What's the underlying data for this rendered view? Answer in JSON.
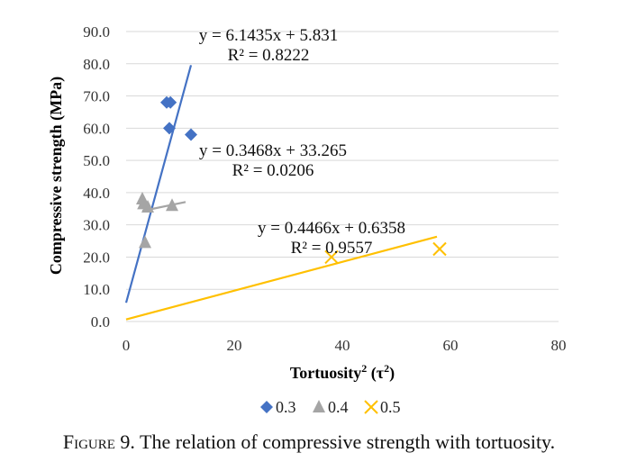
{
  "chart_data": {
    "type": "scatter",
    "xlabel": "Tortuosity",
    "ylabel": "Compressive strength (MPa)",
    "xlim": [
      0,
      80
    ],
    "ylim": [
      0,
      90
    ],
    "x_ticks": [
      "0",
      "20",
      "40",
      "60",
      "80"
    ],
    "y_ticks": [
      "0.0",
      "10.0",
      "20.0",
      "30.0",
      "40.0",
      "50.0",
      "60.0",
      "70.0",
      "80.0",
      "90.0"
    ],
    "grid": "horizontal",
    "legend_position": "bottom",
    "series": [
      {
        "name": "0.3",
        "marker": "diamond",
        "color": "#4472C4",
        "points": [
          [
            7.5,
            68
          ],
          [
            8.2,
            68
          ],
          [
            8.0,
            60
          ],
          [
            12.0,
            58
          ]
        ],
        "trendline": {
          "slope": 6.1435,
          "intercept": 5.831,
          "x_range": [
            0,
            12.0
          ],
          "equation": "y = 6.1435x + 5.831",
          "r2": "R² = 0.8222"
        }
      },
      {
        "name": "0.4",
        "marker": "triangle",
        "color": "#A5A5A5",
        "points": [
          [
            3.0,
            38
          ],
          [
            3.2,
            36.5
          ],
          [
            4.0,
            35.5
          ],
          [
            8.5,
            36
          ],
          [
            3.5,
            24.5
          ]
        ],
        "trendline": {
          "slope": 0.3468,
          "intercept": 33.265,
          "x_range": [
            3.0,
            11.0
          ],
          "equation": "y = 0.3468x + 33.265",
          "r2": "R² = 0.0206"
        }
      },
      {
        "name": "0.5",
        "marker": "x",
        "color": "#FFC000",
        "points": [
          [
            38,
            20
          ],
          [
            58,
            22.5
          ]
        ],
        "trendline": {
          "slope": 0.4466,
          "intercept": 0.6358,
          "x_range": [
            0,
            57.5
          ],
          "equation": "y = 0.4466x + 0.6358",
          "r2": "R² = 0.9557"
        }
      }
    ]
  },
  "axis": {
    "x_title": "Tortuosity",
    "x_sup": "2",
    "x_paren_open": " (τ",
    "x_paren_sup": "2",
    "x_paren_close": ")"
  },
  "caption": {
    "figure_label": "Figure 9.",
    "text": " The relation of compressive strength with tortuosity."
  }
}
